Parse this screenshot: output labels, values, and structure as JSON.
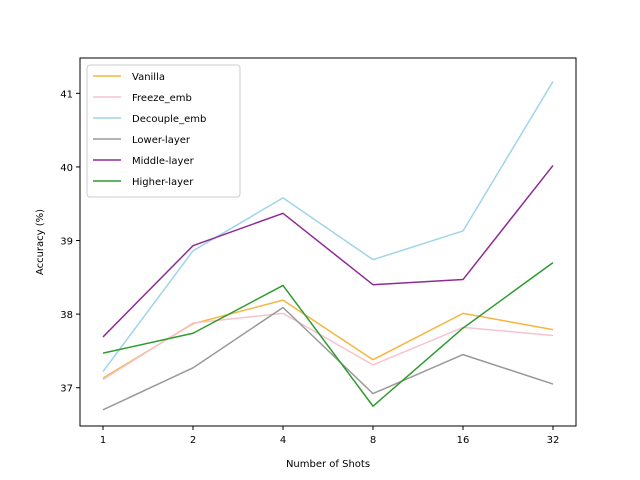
{
  "chart_data": {
    "type": "line",
    "title": "",
    "xlabel": "Number of Shots",
    "ylabel": "Accuracy (%)",
    "x": [
      "1",
      "2",
      "4",
      "8",
      "16",
      "32"
    ],
    "ylim": [
      36.48,
      41.48
    ],
    "yticks": [
      37,
      38,
      39,
      40,
      41
    ],
    "grid": false,
    "legend_position": "top-left",
    "series": [
      {
        "name": "Vanilla",
        "color": "#f6b53d",
        "values": [
          37.13,
          37.87,
          38.19,
          37.38,
          38.01,
          37.79
        ]
      },
      {
        "name": "Freeze_emb",
        "color": "#f7c3cf",
        "values": [
          37.11,
          37.88,
          38.01,
          37.31,
          37.82,
          37.71
        ]
      },
      {
        "name": "Decouple_emb",
        "color": "#9fd4ea",
        "values": [
          37.22,
          38.86,
          39.58,
          38.74,
          39.13,
          41.16
        ]
      },
      {
        "name": "Lower-layer",
        "color": "#999999",
        "values": [
          36.7,
          37.27,
          38.09,
          36.92,
          37.45,
          37.05
        ]
      },
      {
        "name": "Middle-layer",
        "color": "#8e2c96",
        "values": [
          37.69,
          38.93,
          39.37,
          38.4,
          38.47,
          40.02
        ]
      },
      {
        "name": "Higher-layer",
        "color": "#2f9b2f",
        "values": [
          37.47,
          37.74,
          38.39,
          36.75,
          37.81,
          38.7
        ]
      }
    ]
  }
}
